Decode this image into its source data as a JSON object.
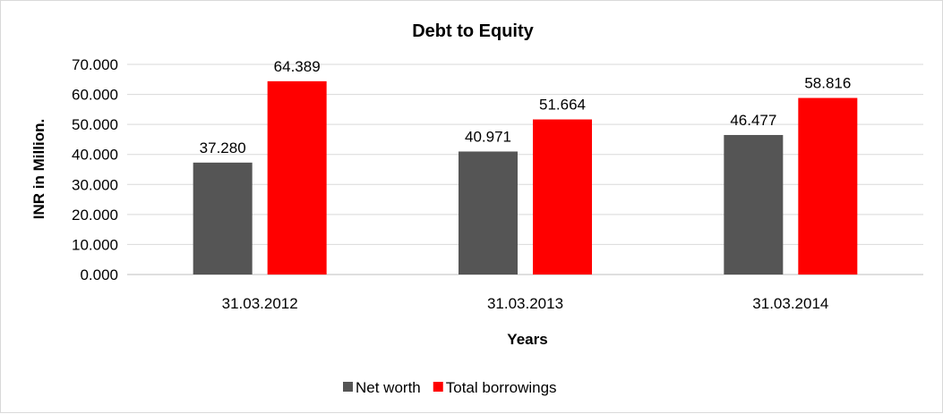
{
  "chart_data": {
    "type": "bar",
    "title": "Debt to Equity",
    "xlabel": "Years",
    "ylabel": "INR in Million.",
    "categories": [
      "31.03.2012",
      "31.03.2013",
      "31.03.2014"
    ],
    "series": [
      {
        "name": "Net worth",
        "color": "#555555",
        "values": [
          37.28,
          40.971,
          46.477
        ],
        "labels": [
          "37.280",
          "40.971",
          "46.477"
        ]
      },
      {
        "name": "Total borrowings",
        "color": "#ff0000",
        "values": [
          64.389,
          51.664,
          58.816
        ],
        "labels": [
          "64.389",
          "51.664",
          "58.816"
        ]
      }
    ],
    "ylim": [
      0,
      70
    ],
    "yticks": [
      "0.000",
      "10.000",
      "20.000",
      "30.000",
      "40.000",
      "50.000",
      "60.000",
      "70.000"
    ],
    "grid": true,
    "legend": "bottom"
  }
}
